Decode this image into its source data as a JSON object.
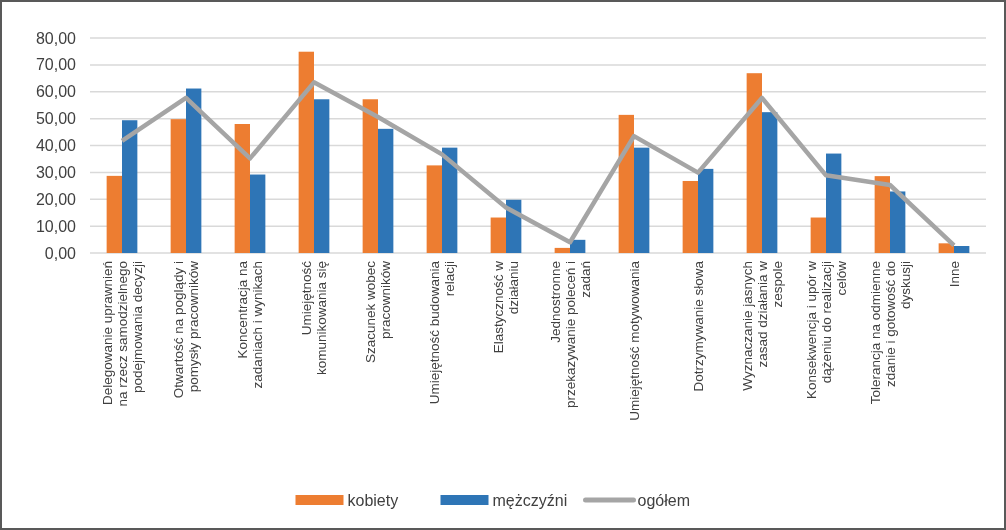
{
  "chart_data": {
    "type": "bar",
    "categories": [
      "Delegowanie uprawnień na rzecz samodzielnego podejmowania decyzji",
      "Otwartość na poglądy i pomysły pracowników",
      "Koncentracja na zadaniach i wynikach",
      "Umiejętność komunikowania się",
      "Szacunek wobec pracowników",
      "Umiejętność budowania relacji",
      "Elastyczność w działaniu",
      "Jednostronne przekazywanie poleceń i zadań",
      "Umiejętność motywowania",
      "Dotrzymywanie słowa",
      "Wyznaczanie jasnych zasad działania w zespole",
      "Konsekwencja i upór w dążeniu do realizacji celów",
      "Tolerancja na odmienne zdanie i gotowość do dyskusji",
      "Inne"
    ],
    "series": [
      {
        "name": "kobiety",
        "color": "#ed7d31",
        "values": [
          28.7,
          49.8,
          48,
          74.9,
          57.2,
          32.6,
          13.2,
          1.9,
          51.4,
          26.8,
          66.9,
          13.2,
          28.6,
          3.6
        ]
      },
      {
        "name": "mężczyźni",
        "color": "#2e75b6",
        "values": [
          49.4,
          61.2,
          29.2,
          57.2,
          46.2,
          39.2,
          19.8,
          4.9,
          39.2,
          31.3,
          52.4,
          37,
          22.9,
          2.6
        ]
      },
      {
        "name": "ogółem",
        "color": "#a5a5a5",
        "type": "line",
        "values": [
          41.7,
          57.7,
          35.2,
          63.5,
          50.6,
          36.7,
          16.9,
          4,
          43.5,
          29.9,
          57.7,
          28.9,
          25.3,
          2.8
        ]
      }
    ],
    "ylim": [
      0,
      80
    ],
    "yticks": [
      {
        "value": 0,
        "label": "0,00"
      },
      {
        "value": 10,
        "label": "10,00"
      },
      {
        "value": 20,
        "label": "20,00"
      },
      {
        "value": 30,
        "label": "30,00"
      },
      {
        "value": 40,
        "label": "40,00"
      },
      {
        "value": 50,
        "label": "50,00"
      },
      {
        "value": 60,
        "label": "60,00"
      },
      {
        "value": 70,
        "label": "70,00"
      },
      {
        "value": 80,
        "label": "80,00"
      }
    ],
    "grid": "y",
    "legend": "bottom",
    "marker": "none"
  }
}
